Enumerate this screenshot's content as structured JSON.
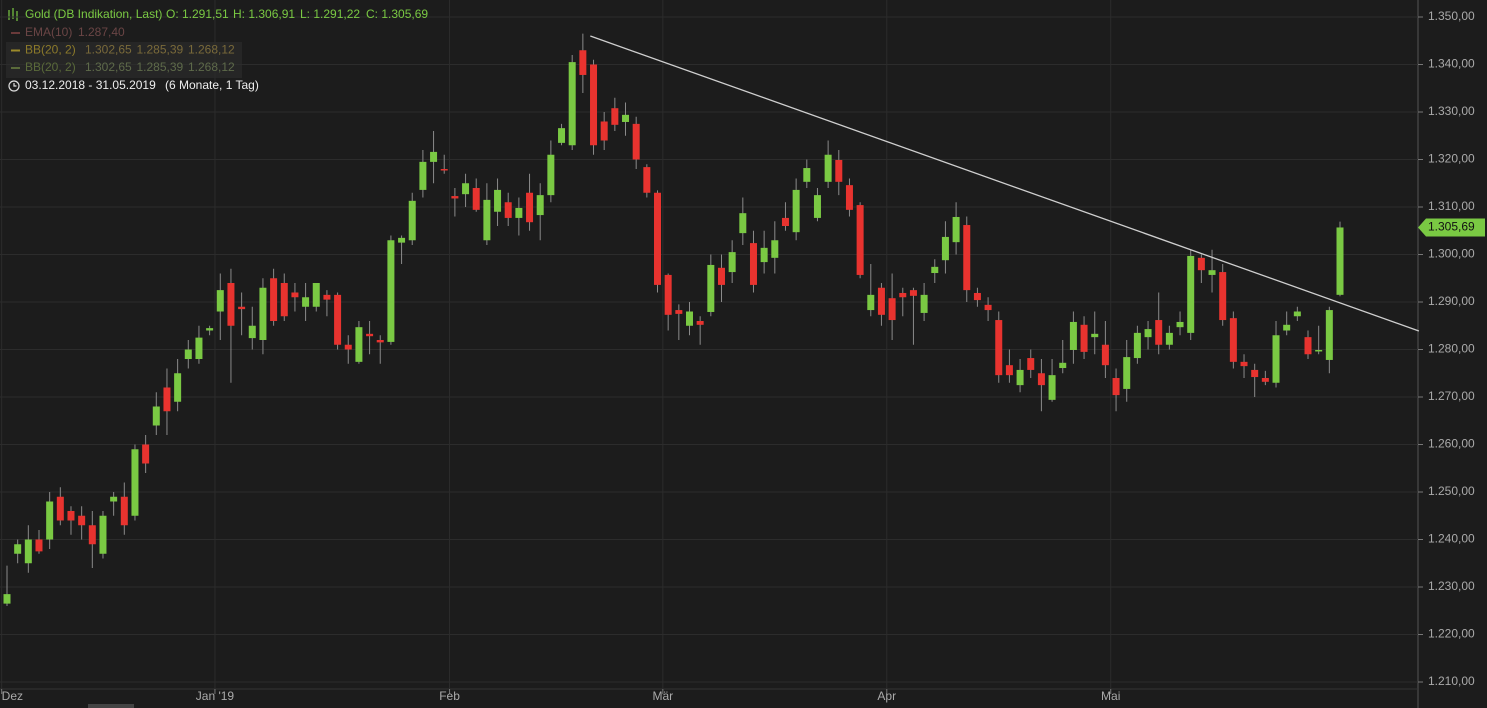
{
  "chart_data": {
    "type": "candlestick",
    "title": "Gold (DB Indikation, Last)",
    "quote": [
      "O: 1.291,51",
      "H: 1.306,91",
      "L: 1.291,22",
      "C: 1.305,69"
    ],
    "indicators": [
      {
        "name": "EMA(10)",
        "values": [
          "1.287,40"
        ]
      },
      {
        "name": "BB(20, 2)",
        "values": [
          "1.302,65",
          "1.285,39",
          "1.268,12"
        ]
      },
      {
        "name": "BB(20, 2)",
        "values": [
          "1.302,65",
          "1.285,39",
          "1.268,12"
        ]
      }
    ],
    "range": "03.12.2018 - 31.05.2019",
    "range_note": "(6 Monate, 1 Tag)",
    "up_color": "#7ac943",
    "down_color": "#e8332f",
    "wick_color": "#8a8a8a",
    "ylim": [
      1210,
      1350
    ],
    "yticks": [
      {
        "value": 1210,
        "label": "1.210,00"
      },
      {
        "value": 1220,
        "label": "1.220,00"
      },
      {
        "value": 1230,
        "label": "1.230,00"
      },
      {
        "value": 1240,
        "label": "1.240,00"
      },
      {
        "value": 1250,
        "label": "1.250,00"
      },
      {
        "value": 1260,
        "label": "1.260,00"
      },
      {
        "value": 1270,
        "label": "1.270,00"
      },
      {
        "value": 1280,
        "label": "1.280,00"
      },
      {
        "value": 1290,
        "label": "1.290,00"
      },
      {
        "value": 1300,
        "label": "1.300,00"
      },
      {
        "value": 1310,
        "label": "1.310,00"
      },
      {
        "value": 1320,
        "label": "1.320,00"
      },
      {
        "value": 1330,
        "label": "1.330,00"
      },
      {
        "value": 1340,
        "label": "1.340,00"
      },
      {
        "value": 1350,
        "label": "1.350,00"
      }
    ],
    "xticks": [
      {
        "value": 0,
        "label": "Dez"
      },
      {
        "value": 20,
        "label": "Jan '19"
      },
      {
        "value": 42,
        "label": "Feb"
      },
      {
        "value": 62,
        "label": "Mär"
      },
      {
        "value": 83,
        "label": "Apr"
      },
      {
        "value": 104,
        "label": "Mai"
      }
    ],
    "grid": true,
    "last_price": {
      "value": 1305.69,
      "label": "1.305,69"
    },
    "trendline": {
      "x": [
        54.7,
        132.4
      ],
      "y": [
        1346,
        1283.9
      ]
    },
    "open": [
      1226.5,
      1237,
      1235,
      1240,
      1240,
      1249,
      1246,
      1245,
      1243,
      1237,
      1248,
      1249,
      1245,
      1260,
      1264,
      1272,
      1269,
      1278,
      1278,
      1284,
      1288,
      1294,
      1289,
      1282.4,
      1282,
      1295,
      1294,
      1292,
      1289,
      1289,
      1291.5,
      1291.5,
      1281,
      1277.4,
      1283.3,
      1282,
      1281.6,
      1302.5,
      1303,
      1313.6,
      1319.5,
      1318,
      1312.3,
      1312.7,
      1314,
      1303,
      1309,
      1311,
      1307.7,
      1313,
      1308.3,
      1312.5,
      1323.5,
      1323,
      1343,
      1340,
      1328,
      1330.8,
      1327.9,
      1327.5,
      1318.4,
      1313,
      1295.7,
      1288.3,
      1285,
      1286,
      1287.9,
      1297.2,
      1296.3,
      1304.5,
      1302.4,
      1298.4,
      1299.3,
      1307.7,
      1304.7,
      1315.3,
      1307.7,
      1315.3,
      1319.9,
      1314.6,
      1310.4,
      1288.3,
      1293,
      1290.8,
      1291.9,
      1292.5,
      1287.7,
      1296.1,
      1298.8,
      1302.6,
      1306.2,
      1291.9,
      1289.4,
      1286.2,
      1276.7,
      1272.5,
      1278.2,
      1275,
      1269.4,
      1276.1,
      1279.9,
      1285.2,
      1282.6,
      1281,
      1274,
      1271.7,
      1278.2,
      1282.6,
      1286.2,
      1281,
      1284.7,
      1283.5,
      1299.3,
      1295.7,
      1296.3,
      1286.6,
      1277.4,
      1275.7,
      1274,
      1273,
      1284,
      1287,
      1282.6,
      1279.7,
      1277.8,
      1291.51
    ],
    "high": [
      1234.5,
      1240,
      1243,
      1242,
      1250,
      1251,
      1247,
      1247,
      1246,
      1246,
      1250,
      1252,
      1260,
      1262,
      1271,
      1276,
      1278,
      1282,
      1285,
      1285,
      1296,
      1297,
      1292,
      1289,
      1295,
      1297,
      1296,
      1294,
      1294,
      1294,
      1292.5,
      1292,
      1283,
      1286,
      1286,
      1283,
      1304,
      1304,
      1313,
      1322,
      1326,
      1321,
      1314,
      1317,
      1316,
      1315,
      1316,
      1313,
      1312,
      1317,
      1315,
      1324,
      1327.5,
      1342,
      1346.5,
      1341,
      1330,
      1333,
      1332,
      1329,
      1319,
      1313.5,
      1296,
      1289.5,
      1290,
      1287,
      1300,
      1300,
      1303,
      1312,
      1305,
      1305,
      1307,
      1311,
      1316,
      1320,
      1314,
      1324,
      1322,
      1316,
      1311,
      1298,
      1294,
      1296,
      1293,
      1293,
      1294,
      1299,
      1307,
      1311,
      1308,
      1293,
      1291,
      1288,
      1280,
      1278,
      1280,
      1278,
      1278,
      1282,
      1288,
      1287,
      1288,
      1286,
      1276,
      1282,
      1285,
      1286,
      1292,
      1285,
      1288,
      1301,
      1300,
      1301,
      1298,
      1288,
      1279,
      1277,
      1275.5,
      1286,
      1288,
      1289,
      1284,
      1285,
      1289,
      1306.91
    ],
    "low": [
      1226,
      1235,
      1233,
      1237,
      1238,
      1243,
      1241,
      1240,
      1234,
      1236,
      1245,
      1241,
      1244,
      1254,
      1262,
      1262,
      1267,
      1276,
      1277,
      1283,
      1282,
      1273,
      1283,
      1280,
      1279,
      1285,
      1286,
      1288,
      1286,
      1288,
      1287,
      1280,
      1277,
      1277,
      1279,
      1277,
      1281,
      1298,
      1302,
      1312,
      1315,
      1317,
      1308,
      1310,
      1309,
      1302,
      1306,
      1306,
      1304,
      1305,
      1303,
      1311,
      1323,
      1322,
      1334,
      1321,
      1322,
      1326,
      1325,
      1318,
      1312,
      1292,
      1284,
      1282,
      1283,
      1281,
      1287,
      1290,
      1294,
      1302,
      1292,
      1296,
      1296,
      1305,
      1303,
      1314,
      1307,
      1314,
      1312.5,
      1308,
      1295,
      1287,
      1285,
      1282,
      1287,
      1281,
      1286,
      1294,
      1296,
      1300,
      1290,
      1289,
      1286,
      1273,
      1273,
      1271,
      1274,
      1267,
      1269,
      1275,
      1277,
      1278,
      1279,
      1274,
      1267,
      1269,
      1277,
      1280,
      1279,
      1280,
      1283,
      1282,
      1294,
      1292,
      1285,
      1276,
      1274,
      1270,
      1272.5,
      1272,
      1283,
      1286,
      1278,
      1279,
      1275,
      1291.22
    ],
    "close": [
      1228.5,
      1239,
      1240,
      1237.5,
      1248,
      1244,
      1244,
      1243,
      1239,
      1245,
      1249,
      1243,
      1259,
      1256,
      1268,
      1267,
      1275,
      1280,
      1282.5,
      1284.5,
      1292.5,
      1285,
      1288.5,
      1285,
      1293,
      1286,
      1287,
      1291,
      1291,
      1294,
      1290.5,
      1281,
      1280,
      1284.7,
      1282.8,
      1281.5,
      1303,
      1303.5,
      1311.3,
      1319.5,
      1321.6,
      1317.7,
      1311.8,
      1315,
      1309.4,
      1311.5,
      1313.6,
      1307.7,
      1309.8,
      1306.8,
      1312.5,
      1321,
      1326.6,
      1340.5,
      1337.8,
      1323,
      1324,
      1327.3,
      1329.4,
      1320,
      1313,
      1293.6,
      1287.3,
      1287.5,
      1288,
      1285.2,
      1297.8,
      1293.6,
      1300.5,
      1308.7,
      1293.6,
      1301.4,
      1303,
      1306,
      1313.6,
      1318.2,
      1312.5,
      1321,
      1315.3,
      1309.4,
      1295.7,
      1291.5,
      1287.3,
      1286.2,
      1291,
      1291.3,
      1291.5,
      1297.4,
      1303.7,
      1307.9,
      1292.5,
      1290.4,
      1288.3,
      1274.6,
      1274.6,
      1275.7,
      1275.7,
      1272.5,
      1274.6,
      1277.2,
      1285.8,
      1279.5,
      1283.3,
      1276.7,
      1270.4,
      1278.4,
      1283.5,
      1284.3,
      1281,
      1283.5,
      1285.8,
      1299.7,
      1296.7,
      1296.7,
      1286.2,
      1277.4,
      1276.5,
      1274.2,
      1273.2,
      1283,
      1285.2,
      1288,
      1279,
      1279.9,
      1288.3,
      1305.69
    ]
  }
}
